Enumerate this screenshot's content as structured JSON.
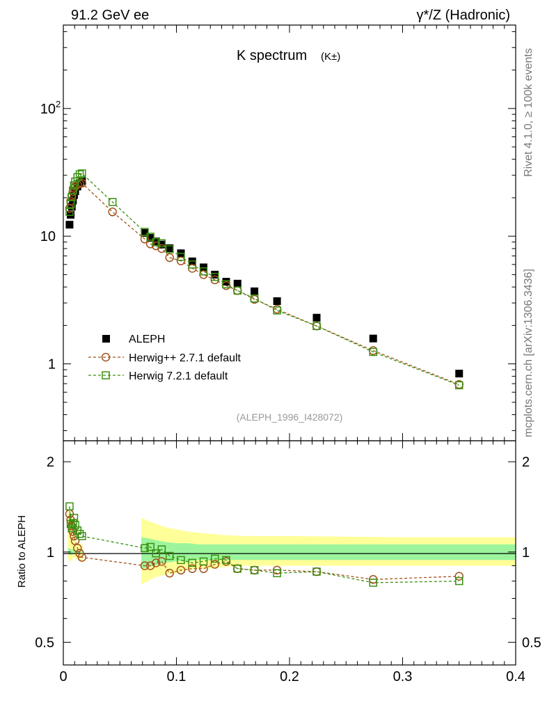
{
  "header": {
    "left": "91.2 GeV ee",
    "right": "γ*/Z (Hadronic)"
  },
  "side_labels": {
    "rivet": "Rivet 4.1.0, ≥ 100k events",
    "mcplots": "mcplots.cern.ch [arXiv:1306.3436]"
  },
  "chart_data": {
    "type": "scatter",
    "title": "K spectrum",
    "title_sub": "(K±)",
    "analysis_id": "(ALEPH_1996_I428072)",
    "xlabel": "",
    "ylabel": "",
    "ratio_ylabel": "Ratio to ALEPH",
    "xlim": [
      0,
      0.4
    ],
    "ylim": [
      0.25,
      450
    ],
    "y_scale": "log",
    "ratio_ylim": [
      0.42,
      2.35
    ],
    "x_ticks": [
      "0",
      "0.1",
      "0.2",
      "0.3",
      "0.4"
    ],
    "y_ticks": [
      "1",
      "10",
      "10^2"
    ],
    "ratio_ticks": [
      "0.5",
      "1",
      "2"
    ],
    "legend": [
      "ALEPH",
      "Herwig++ 2.7.1 default",
      "Herwig 7.2.1 default"
    ],
    "legend_position": "bottom-left",
    "colors": {
      "aleph": "#000000",
      "herwigpp": "#a0521c",
      "herwig7": "#3a8f10",
      "band_inner": "#9cf59c",
      "band_outer": "#ffff99"
    },
    "series": [
      {
        "name": "ALEPH",
        "x": [
          0.0055,
          0.0065,
          0.0075,
          0.0085,
          0.0095,
          0.0105,
          0.0125,
          0.0145,
          0.0165,
          0.072,
          0.077,
          0.082,
          0.087,
          0.094,
          0.104,
          0.114,
          0.124,
          0.134,
          0.144,
          0.154,
          0.169,
          0.189,
          0.224,
          0.274,
          0.35
        ],
        "y": [
          12.3,
          14.7,
          17.0,
          19.0,
          21.0,
          22.5,
          24.5,
          26.0,
          27.0,
          10.6,
          9.7,
          9.1,
          8.6,
          8.05,
          7.35,
          6.35,
          5.7,
          5.0,
          4.4,
          4.25,
          3.7,
          3.1,
          2.3,
          1.58,
          0.84
        ]
      },
      {
        "name": "Herwig++ 2.7.1 default",
        "x": [
          0.0055,
          0.0065,
          0.0075,
          0.0085,
          0.0095,
          0.0105,
          0.0125,
          0.0145,
          0.0165,
          0.0435,
          0.072,
          0.077,
          0.082,
          0.087,
          0.094,
          0.104,
          0.114,
          0.124,
          0.134,
          0.144,
          0.154,
          0.169,
          0.189,
          0.224,
          0.274,
          0.35
        ],
        "y": [
          16.5,
          18.8,
          20.8,
          22.3,
          23.8,
          24.5,
          25.3,
          25.8,
          26.0,
          15.5,
          9.5,
          8.7,
          8.4,
          8.0,
          6.8,
          6.4,
          5.6,
          5.0,
          4.55,
          4.1,
          3.75,
          3.2,
          2.68,
          1.98,
          1.27,
          0.69
        ]
      },
      {
        "name": "Herwig 7.2.1 default",
        "x": [
          0.0055,
          0.0065,
          0.0075,
          0.0085,
          0.0095,
          0.0105,
          0.0125,
          0.0145,
          0.0165,
          0.0435,
          0.072,
          0.077,
          0.082,
          0.087,
          0.094,
          0.104,
          0.114,
          0.124,
          0.134,
          0.144,
          0.154,
          0.169,
          0.189,
          0.224,
          0.274,
          0.35
        ],
        "y": [
          15.5,
          17.8,
          20.3,
          22.8,
          25.0,
          26.8,
          29.0,
          30.5,
          31.0,
          18.5,
          10.8,
          9.9,
          9.0,
          8.8,
          7.9,
          6.9,
          6.0,
          5.3,
          4.8,
          4.2,
          3.75,
          3.25,
          2.62,
          1.98,
          1.24,
          0.68
        ]
      }
    ],
    "ratio_series": [
      {
        "name": "Herwig++ 2.7.1 default",
        "x": [
          0.0055,
          0.0065,
          0.0075,
          0.0085,
          0.0095,
          0.0105,
          0.0125,
          0.0145,
          0.0165,
          0.072,
          0.077,
          0.082,
          0.087,
          0.094,
          0.104,
          0.114,
          0.124,
          0.134,
          0.144,
          0.154,
          0.169,
          0.189,
          0.224,
          0.274,
          0.35
        ],
        "y": [
          1.34,
          1.28,
          1.22,
          1.17,
          1.13,
          1.09,
          1.03,
          0.99,
          0.96,
          0.9,
          0.9,
          0.92,
          0.93,
          0.85,
          0.87,
          0.88,
          0.88,
          0.91,
          0.93,
          0.88,
          0.87,
          0.87,
          0.86,
          0.81,
          0.83
        ]
      },
      {
        "name": "Herwig 7.2.1 default",
        "x": [
          0.0055,
          0.0065,
          0.0075,
          0.0085,
          0.0095,
          0.0105,
          0.0125,
          0.0145,
          0.0165,
          0.072,
          0.077,
          0.082,
          0.087,
          0.094,
          0.104,
          0.114,
          0.124,
          0.134,
          0.144,
          0.154,
          0.169,
          0.189,
          0.224,
          0.274,
          0.35
        ],
        "y": [
          1.42,
          1.24,
          1.2,
          1.25,
          1.3,
          1.23,
          1.18,
          1.15,
          1.13,
          1.03,
          1.04,
          0.99,
          1.02,
          0.97,
          0.94,
          0.92,
          0.93,
          0.95,
          0.94,
          0.88,
          0.87,
          0.85,
          0.86,
          0.79,
          0.8
        ]
      }
    ],
    "ratio_bands": [
      {
        "x_range": [
          0.004,
          0.017
        ],
        "x": [
          0.004,
          0.0055,
          0.007,
          0.009,
          0.011,
          0.013,
          0.015,
          0.017
        ],
        "outer": [
          [
            0.96,
            1.42
          ],
          [
            0.93,
            1.32
          ],
          [
            0.93,
            1.2
          ],
          [
            0.96,
            1.12
          ],
          [
            0.95,
            1.08
          ],
          [
            0.95,
            1.06
          ],
          [
            0.93,
            1.07
          ],
          [
            0.92,
            1.05
          ]
        ],
        "inner": [
          [
            0.99,
            1.03
          ],
          [
            0.98,
            1.03
          ],
          [
            0.98,
            1.02
          ],
          [
            0.99,
            1.02
          ],
          [
            0.99,
            1.02
          ],
          [
            0.99,
            1.01
          ],
          [
            0.99,
            1.01
          ],
          [
            0.99,
            1.01
          ]
        ]
      },
      {
        "x_range": [
          0.069,
          0.4
        ],
        "x": [
          0.069,
          0.075,
          0.08,
          0.085,
          0.09,
          0.1,
          0.11,
          0.12,
          0.13,
          0.14,
          0.16,
          0.2,
          0.3,
          0.4
        ],
        "outer": [
          [
            0.78,
            1.3
          ],
          [
            0.8,
            1.27
          ],
          [
            0.82,
            1.25
          ],
          [
            0.83,
            1.23
          ],
          [
            0.84,
            1.21
          ],
          [
            0.85,
            1.19
          ],
          [
            0.87,
            1.17
          ],
          [
            0.88,
            1.16
          ],
          [
            0.88,
            1.15
          ],
          [
            0.89,
            1.14
          ],
          [
            0.9,
            1.13
          ],
          [
            0.9,
            1.13
          ],
          [
            0.9,
            1.12
          ],
          [
            0.9,
            1.12
          ]
        ],
        "inner": [
          [
            0.88,
            1.12
          ],
          [
            0.89,
            1.11
          ],
          [
            0.9,
            1.1
          ],
          [
            0.91,
            1.09
          ],
          [
            0.92,
            1.08
          ],
          [
            0.93,
            1.07
          ],
          [
            0.93,
            1.07
          ],
          [
            0.94,
            1.06
          ],
          [
            0.94,
            1.06
          ],
          [
            0.94,
            1.06
          ],
          [
            0.94,
            1.06
          ],
          [
            0.94,
            1.06
          ],
          [
            0.94,
            1.06
          ],
          [
            0.94,
            1.06
          ]
        ]
      }
    ]
  }
}
